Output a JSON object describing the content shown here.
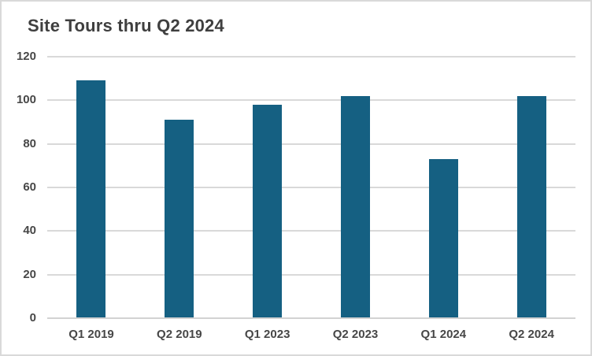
{
  "frame": {
    "background": "#FFFFFF",
    "border_color": "#D9D9D9"
  },
  "chart_data": {
    "type": "bar",
    "title": "Site Tours thru Q2 2024",
    "categories": [
      "Q1 2019",
      "Q2 2019",
      "Q1 2023",
      "Q2 2023",
      "Q1 2024",
      "Q2 2024"
    ],
    "values": [
      109,
      91,
      98,
      102,
      73,
      102
    ],
    "xlabel": "",
    "ylabel": "",
    "ylim": [
      0,
      120
    ],
    "yticks": [
      0,
      20,
      40,
      60,
      80,
      100,
      120
    ],
    "grid": "horizontal",
    "legend": "none",
    "bar_color": "#156082",
    "gridline_color": "#D9D9D9",
    "axis_line_color": "#D2D2D2",
    "tick_label_color": "#474747",
    "title_color": "#3F3F3F"
  }
}
